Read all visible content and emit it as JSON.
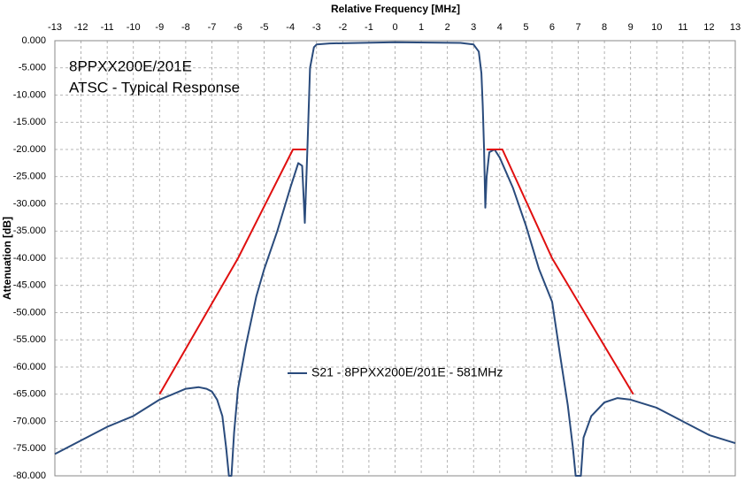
{
  "chart_data": {
    "type": "line",
    "x_label": "Relative Frequency [MHz]",
    "y_label": "Attenuation [dB]",
    "annotations": [
      "8PPXX200E/201E",
      "ATSC - Typical Response"
    ],
    "xlim": [
      -13,
      13
    ],
    "xticks": [
      -13,
      -12,
      -11,
      -10,
      -9,
      -8,
      -7,
      -6,
      -5,
      -4,
      -3,
      -2,
      -1,
      0,
      1,
      2,
      3,
      4,
      5,
      6,
      7,
      8,
      9,
      10,
      11,
      12,
      13
    ],
    "ylim": [
      -80,
      0
    ],
    "yticks": [
      {
        "value": 0,
        "label": "0.000"
      },
      {
        "value": -5,
        "label": "-5.000"
      },
      {
        "value": -10,
        "label": "-10.000"
      },
      {
        "value": -15,
        "label": "-15.000"
      },
      {
        "value": -20,
        "label": "-20.000"
      },
      {
        "value": -25,
        "label": "-25.000"
      },
      {
        "value": -30,
        "label": "-30.000"
      },
      {
        "value": -35,
        "label": "-35.000"
      },
      {
        "value": -40,
        "label": "-40.000"
      },
      {
        "value": -45,
        "label": "-45.000"
      },
      {
        "value": -50,
        "label": "-50.000"
      },
      {
        "value": -55,
        "label": "-55.000"
      },
      {
        "value": -60,
        "label": "-60.000"
      },
      {
        "value": -65,
        "label": "-65.000"
      },
      {
        "value": -70,
        "label": "-70.000"
      },
      {
        "value": -75,
        "label": "-75.000"
      },
      {
        "value": -80,
        "label": "-80.000"
      }
    ],
    "grid": true,
    "series": [
      {
        "name": "S21 - 8PPXX200E/201E - 581MHz",
        "color": "#2a4b7c",
        "legend": true,
        "x": [
          -13,
          -12,
          -11,
          -10,
          -9.5,
          -9,
          -8.5,
          -8,
          -7.5,
          -7.2,
          -7,
          -6.8,
          -6.6,
          -6.45,
          -6.35,
          -6.25,
          -6.15,
          -6,
          -5.7,
          -5.3,
          -5,
          -4.5,
          -4,
          -3.7,
          -3.55,
          -3.45,
          -3.35,
          -3.25,
          -3.1,
          -3,
          -2.5,
          0,
          2.5,
          3,
          3.2,
          3.3,
          3.35,
          3.4,
          3.45,
          3.5,
          3.6,
          3.8,
          4,
          4.5,
          5,
          5.5,
          6,
          6.3,
          6.6,
          6.8,
          6.9,
          7.1,
          7.2,
          7.5,
          8,
          8.5,
          9,
          10,
          11,
          12,
          13
        ],
        "values": [
          -76,
          -73.5,
          -71,
          -69,
          -67.5,
          -66,
          -65,
          -64,
          -63.7,
          -64,
          -64.5,
          -66,
          -69,
          -75,
          -80,
          -80,
          -72,
          -64,
          -56,
          -47,
          -42,
          -35,
          -27,
          -22.5,
          -23,
          -33.5,
          -20,
          -5,
          -1.2,
          -0.7,
          -0.5,
          -0.3,
          -0.4,
          -0.7,
          -2,
          -6,
          -12,
          -20,
          -30.7,
          -25,
          -20.5,
          -20,
          -21.5,
          -27,
          -34,
          -42,
          -48,
          -57.6,
          -67,
          -75,
          -80,
          -80,
          -73,
          -69,
          -66.5,
          -65.7,
          -66,
          -67.5,
          -70,
          -72.5,
          -74
        ]
      },
      {
        "color": "#e01010",
        "x": [
          -9,
          -6,
          -3.9,
          -3.4,
          null,
          3.5,
          4.1,
          6,
          9.1
        ],
        "values": [
          -65,
          -40,
          -20,
          -20,
          null,
          -20,
          -20,
          -40,
          -65
        ]
      }
    ]
  }
}
